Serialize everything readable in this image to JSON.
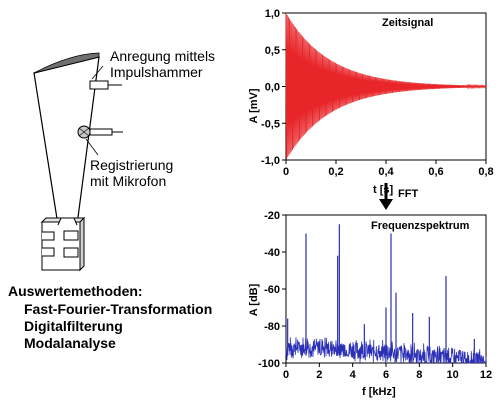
{
  "diagram": {
    "labels": {
      "anregung_line1": "Anregung mittels",
      "anregung_line2": "Impulshammer",
      "registrierung_line1": "Registrierung",
      "registrierung_line2": "mit Mikrofon"
    },
    "methods": {
      "heading": "Auswertemethoden:",
      "items": [
        "Fast-Fourier-Transformation",
        "Digitalfilterung",
        "Modalanalyse"
      ]
    },
    "fft_arrow_label": "FFT"
  },
  "chart_data": [
    {
      "type": "line",
      "title": "Zeitsignal",
      "xlabel": "t [s]",
      "ylabel": "A [mV]",
      "xlim": [
        0,
        0.8
      ],
      "ylim": [
        -1.0,
        1.0
      ],
      "x_ticks": [
        "0",
        "0,2",
        "0,4",
        "0,6",
        "0,8"
      ],
      "y_ticks": [
        "-1,0",
        "-0,5",
        "0,0",
        "0,5",
        "1,0"
      ],
      "series": [
        {
          "color": "#e8262a",
          "description_values": {
            "initial_amplitude": 1.0,
            "amplitude_at_0_4s": 0.1,
            "amplitude_at_0_8s": 0.01
          }
        }
      ]
    },
    {
      "type": "line",
      "title": "Frequenzspektrum",
      "xlabel": "f [kHz]",
      "ylabel": "A [dB]",
      "xlim": [
        0,
        12
      ],
      "ylim": [
        -100,
        -20
      ],
      "x_ticks": [
        "0",
        "2",
        "4",
        "6",
        "8",
        "10",
        "12"
      ],
      "y_ticks": [
        "-100",
        "-80",
        "-60",
        "-40",
        "-20"
      ],
      "series": [
        {
          "color": "#2b2fb5",
          "peaks": [
            {
              "x": 0.1,
              "y": -76
            },
            {
              "x": 1.2,
              "y": -30
            },
            {
              "x": 3.1,
              "y": -42
            },
            {
              "x": 3.2,
              "y": -25
            },
            {
              "x": 4.7,
              "y": -79
            },
            {
              "x": 6.0,
              "y": -70
            },
            {
              "x": 6.3,
              "y": -30
            },
            {
              "x": 6.6,
              "y": -62
            },
            {
              "x": 7.6,
              "y": -73
            },
            {
              "x": 8.6,
              "y": -75
            },
            {
              "x": 9.6,
              "y": -53
            },
            {
              "x": 11.3,
              "y": -87
            }
          ]
        }
      ]
    }
  ]
}
